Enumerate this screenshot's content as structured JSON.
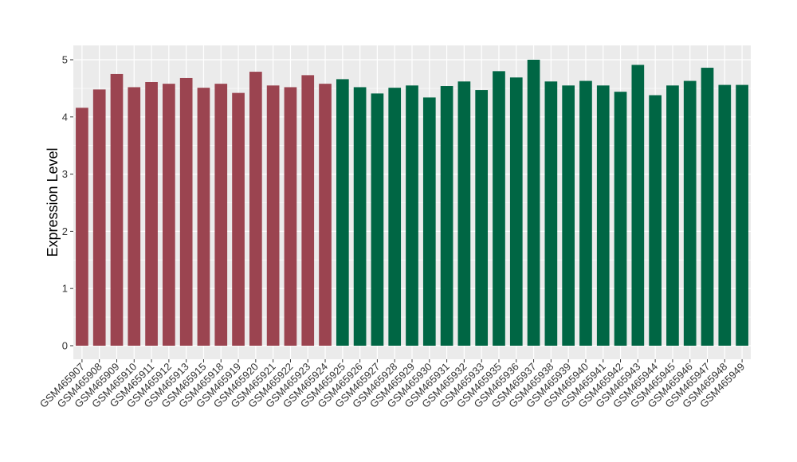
{
  "chart_data": {
    "type": "bar",
    "title": "",
    "xlabel": "",
    "ylabel": "Expression Level",
    "ylim": [
      0,
      5.25
    ],
    "yticks": [
      0,
      1,
      2,
      3,
      4,
      5
    ],
    "grid": true,
    "legend": "none",
    "colors": {
      "group1": "#9b4450",
      "group2": "#006644",
      "panel_background": "#ebebeb",
      "grid": "#ffffff"
    },
    "categories": [
      "GSM465907",
      "GSM465908",
      "GSM465909",
      "GSM465910",
      "GSM465911",
      "GSM465912",
      "GSM465913",
      "GSM465915",
      "GSM465918",
      "GSM465919",
      "GSM465920",
      "GSM465921",
      "GSM465922",
      "GSM465923",
      "GSM465924",
      "GSM465925",
      "GSM465926",
      "GSM465927",
      "GSM465928",
      "GSM465929",
      "GSM465930",
      "GSM465931",
      "GSM465932",
      "GSM465933",
      "GSM465935",
      "GSM465936",
      "GSM465937",
      "GSM465938",
      "GSM465939",
      "GSM465940",
      "GSM465941",
      "GSM465942",
      "GSM465943",
      "GSM465944",
      "GSM465945",
      "GSM465946",
      "GSM465947",
      "GSM465948",
      "GSM465949"
    ],
    "values": [
      4.16,
      4.48,
      4.75,
      4.52,
      4.61,
      4.58,
      4.68,
      4.51,
      4.58,
      4.42,
      4.79,
      4.55,
      4.52,
      4.73,
      4.58,
      4.66,
      4.52,
      4.41,
      4.51,
      4.55,
      4.34,
      4.54,
      4.62,
      4.47,
      4.8,
      4.69,
      5.0,
      4.62,
      4.55,
      4.63,
      4.55,
      4.44,
      4.91,
      4.38,
      4.55,
      4.63,
      4.86,
      4.56,
      4.56
    ],
    "groups": [
      1,
      1,
      1,
      1,
      1,
      1,
      1,
      1,
      1,
      1,
      1,
      1,
      1,
      1,
      1,
      2,
      2,
      2,
      2,
      2,
      2,
      2,
      2,
      2,
      2,
      2,
      2,
      2,
      2,
      2,
      2,
      2,
      2,
      2,
      2,
      2,
      2,
      2,
      2
    ]
  }
}
